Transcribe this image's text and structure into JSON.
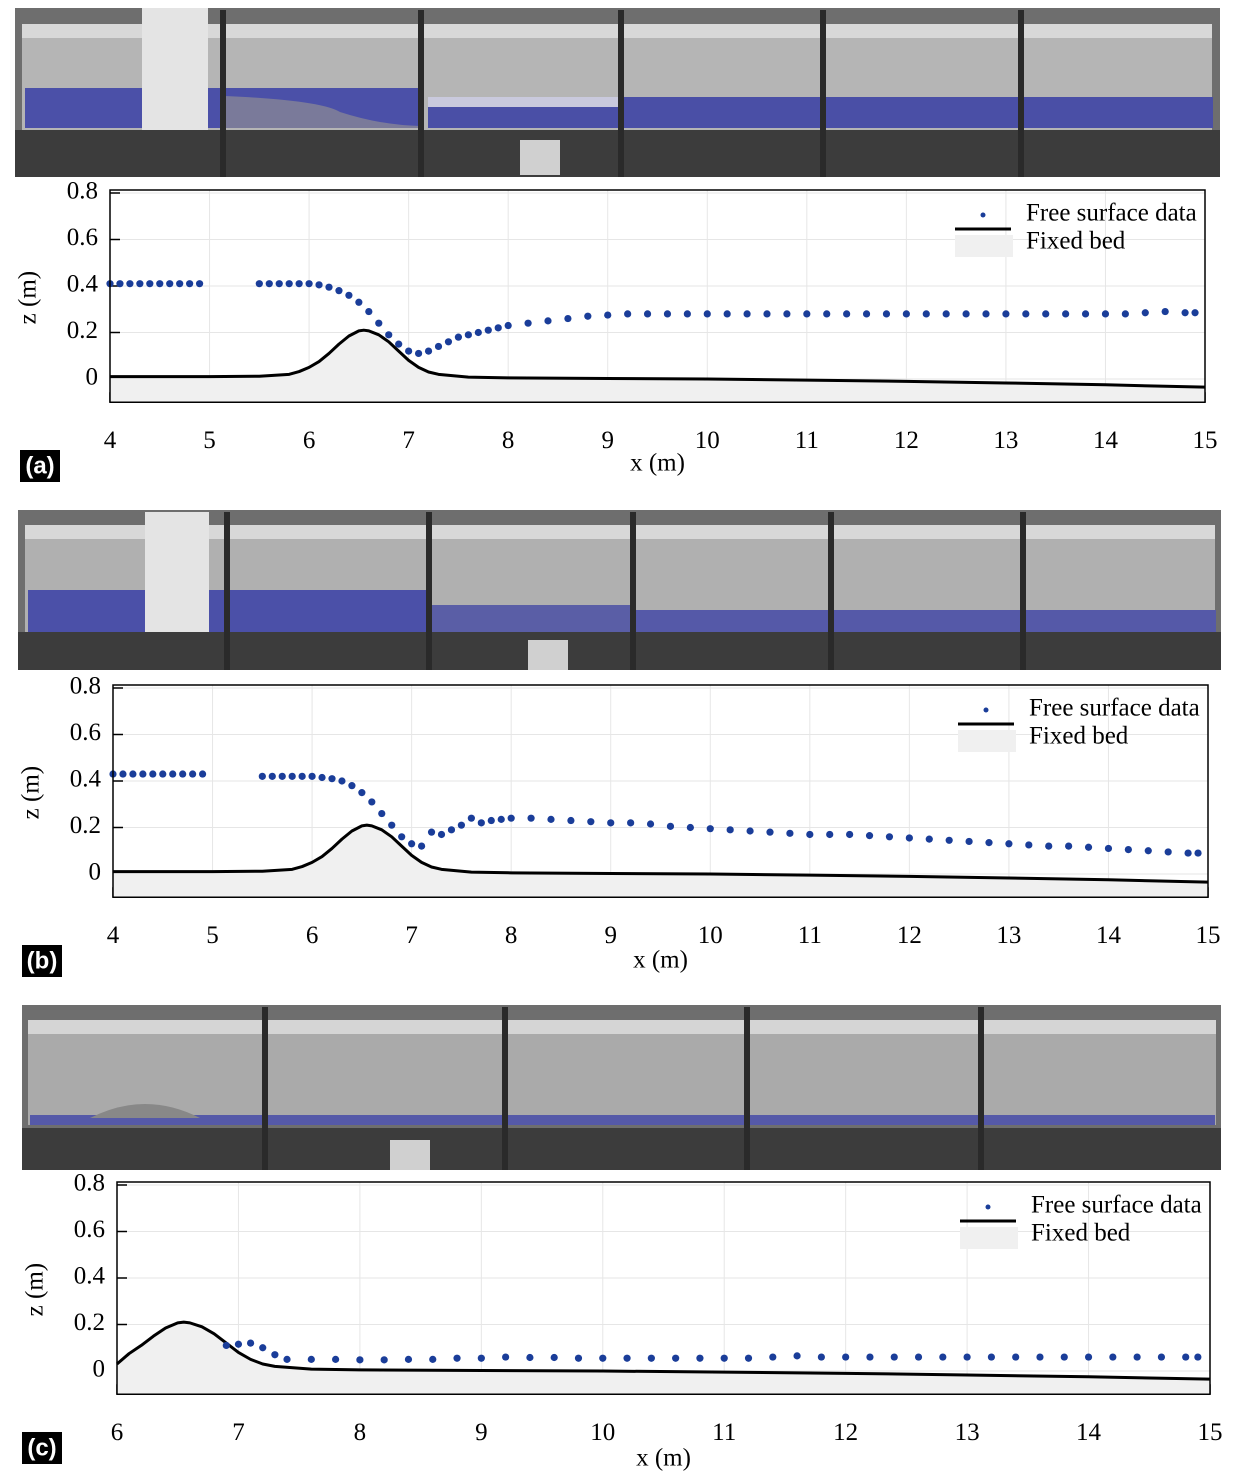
{
  "chart_data": [
    {
      "type": "scatter",
      "panel_label": "(a)",
      "xlabel": "x (m)",
      "ylabel": "z (m)",
      "xlim": [
        4,
        15
      ],
      "xticks": [
        4,
        5,
        6,
        7,
        8,
        9,
        10,
        11,
        12,
        13,
        14,
        15
      ],
      "ylim": [
        -0.1,
        0.8
      ],
      "yticks": [
        0,
        0.2,
        0.4,
        0.6,
        0.8
      ],
      "grid": true,
      "legend": "upper right",
      "series": [
        {
          "name": "Free surface data",
          "type": "scatter",
          "color": "#1a3d99",
          "x": [
            4.0,
            4.1,
            4.2,
            4.3,
            4.4,
            4.5,
            4.6,
            4.7,
            4.8,
            4.9,
            5.5,
            5.6,
            5.7,
            5.8,
            5.9,
            6.0,
            6.1,
            6.2,
            6.3,
            6.4,
            6.5,
            6.6,
            6.7,
            6.8,
            6.9,
            7.0,
            7.1,
            7.2,
            7.3,
            7.4,
            7.5,
            7.6,
            7.7,
            7.8,
            7.9,
            8.0,
            8.2,
            8.4,
            8.6,
            8.8,
            9.0,
            9.2,
            9.4,
            9.6,
            9.8,
            10.0,
            10.2,
            10.4,
            10.6,
            10.8,
            11.0,
            11.2,
            11.4,
            11.6,
            11.8,
            12.0,
            12.2,
            12.4,
            12.6,
            12.8,
            13.0,
            13.2,
            13.4,
            13.6,
            13.8,
            14.0,
            14.2,
            14.4,
            14.6,
            14.8,
            14.9
          ],
          "values": [
            0.41,
            0.41,
            0.41,
            0.41,
            0.41,
            0.41,
            0.41,
            0.41,
            0.41,
            0.41,
            0.41,
            0.41,
            0.41,
            0.41,
            0.41,
            0.41,
            0.405,
            0.395,
            0.38,
            0.36,
            0.33,
            0.29,
            0.24,
            0.19,
            0.15,
            0.12,
            0.11,
            0.12,
            0.14,
            0.16,
            0.18,
            0.19,
            0.2,
            0.21,
            0.22,
            0.23,
            0.24,
            0.25,
            0.26,
            0.27,
            0.275,
            0.28,
            0.28,
            0.28,
            0.28,
            0.28,
            0.28,
            0.28,
            0.28,
            0.28,
            0.28,
            0.28,
            0.28,
            0.28,
            0.28,
            0.28,
            0.28,
            0.28,
            0.28,
            0.28,
            0.28,
            0.28,
            0.28,
            0.28,
            0.28,
            0.28,
            0.28,
            0.285,
            0.29,
            0.285,
            0.285
          ]
        },
        {
          "name": "Fixed bed",
          "type": "line",
          "color": "#000000",
          "fill": "#f0f0f0",
          "x": [
            4,
            5,
            5.5,
            5.8,
            5.9,
            6.0,
            6.1,
            6.2,
            6.3,
            6.4,
            6.5,
            6.55,
            6.6,
            6.7,
            6.8,
            6.9,
            7.0,
            7.1,
            7.2,
            7.3,
            7.6,
            8,
            9,
            10,
            11,
            12,
            13,
            14,
            15
          ],
          "values": [
            0.01,
            0.01,
            0.012,
            0.02,
            0.032,
            0.05,
            0.075,
            0.11,
            0.15,
            0.185,
            0.207,
            0.21,
            0.207,
            0.19,
            0.16,
            0.12,
            0.08,
            0.05,
            0.03,
            0.02,
            0.008,
            0.005,
            0.002,
            0,
            -0.005,
            -0.01,
            -0.017,
            -0.025,
            -0.035
          ]
        }
      ]
    },
    {
      "type": "scatter",
      "panel_label": "(b)",
      "xlabel": "x (m)",
      "ylabel": "z (m)",
      "xlim": [
        4,
        15
      ],
      "xticks": [
        4,
        5,
        6,
        7,
        8,
        9,
        10,
        11,
        12,
        13,
        14,
        15
      ],
      "ylim": [
        -0.1,
        0.8
      ],
      "yticks": [
        0,
        0.2,
        0.4,
        0.6,
        0.8
      ],
      "grid": true,
      "legend": "upper right",
      "series": [
        {
          "name": "Free surface data",
          "type": "scatter",
          "color": "#1a3d99",
          "x": [
            4.0,
            4.1,
            4.2,
            4.3,
            4.4,
            4.5,
            4.6,
            4.7,
            4.8,
            4.9,
            5.5,
            5.6,
            5.7,
            5.8,
            5.9,
            6.0,
            6.1,
            6.2,
            6.3,
            6.4,
            6.5,
            6.6,
            6.7,
            6.8,
            6.9,
            7.0,
            7.1,
            7.2,
            7.3,
            7.4,
            7.5,
            7.6,
            7.7,
            7.8,
            7.9,
            8.0,
            8.2,
            8.4,
            8.6,
            8.8,
            9.0,
            9.2,
            9.4,
            9.6,
            9.8,
            10.0,
            10.2,
            10.4,
            10.6,
            10.8,
            11.0,
            11.2,
            11.4,
            11.6,
            11.8,
            12.0,
            12.2,
            12.4,
            12.6,
            12.8,
            13.0,
            13.2,
            13.4,
            13.6,
            13.8,
            14.0,
            14.2,
            14.4,
            14.6,
            14.8,
            14.9
          ],
          "values": [
            0.43,
            0.43,
            0.43,
            0.43,
            0.43,
            0.43,
            0.43,
            0.43,
            0.43,
            0.43,
            0.42,
            0.42,
            0.42,
            0.42,
            0.42,
            0.42,
            0.415,
            0.41,
            0.4,
            0.38,
            0.35,
            0.31,
            0.26,
            0.21,
            0.16,
            0.13,
            0.12,
            0.18,
            0.17,
            0.19,
            0.21,
            0.24,
            0.22,
            0.23,
            0.235,
            0.24,
            0.24,
            0.235,
            0.23,
            0.225,
            0.22,
            0.22,
            0.215,
            0.205,
            0.2,
            0.195,
            0.19,
            0.185,
            0.18,
            0.175,
            0.17,
            0.17,
            0.17,
            0.165,
            0.16,
            0.155,
            0.15,
            0.145,
            0.14,
            0.135,
            0.13,
            0.125,
            0.12,
            0.12,
            0.115,
            0.11,
            0.105,
            0.1,
            0.095,
            0.09,
            0.09
          ]
        },
        {
          "name": "Fixed bed",
          "type": "line",
          "color": "#000000",
          "fill": "#f0f0f0",
          "x": [
            4,
            5,
            5.5,
            5.8,
            5.9,
            6.0,
            6.1,
            6.2,
            6.3,
            6.4,
            6.5,
            6.55,
            6.6,
            6.7,
            6.8,
            6.9,
            7.0,
            7.1,
            7.2,
            7.3,
            7.6,
            8,
            9,
            10,
            11,
            12,
            13,
            14,
            15
          ],
          "values": [
            0.01,
            0.01,
            0.012,
            0.02,
            0.032,
            0.05,
            0.075,
            0.11,
            0.15,
            0.185,
            0.207,
            0.21,
            0.207,
            0.19,
            0.16,
            0.12,
            0.08,
            0.05,
            0.03,
            0.02,
            0.008,
            0.005,
            0.002,
            0,
            -0.005,
            -0.01,
            -0.017,
            -0.025,
            -0.035
          ]
        }
      ]
    },
    {
      "type": "scatter",
      "panel_label": "(c)",
      "xlabel": "x (m)",
      "ylabel": "z (m)",
      "xlim": [
        6,
        15
      ],
      "xticks": [
        6,
        7,
        8,
        9,
        10,
        11,
        12,
        13,
        14,
        15
      ],
      "ylim": [
        -0.1,
        0.8
      ],
      "yticks": [
        0,
        0.2,
        0.4,
        0.6,
        0.8
      ],
      "grid": true,
      "legend": "upper right",
      "series": [
        {
          "name": "Free surface data",
          "type": "scatter",
          "color": "#1a3d99",
          "x": [
            6.9,
            7.0,
            7.1,
            7.2,
            7.3,
            7.4,
            7.6,
            7.8,
            8.0,
            8.2,
            8.4,
            8.6,
            8.8,
            9.0,
            9.2,
            9.4,
            9.6,
            9.8,
            10.0,
            10.2,
            10.4,
            10.6,
            10.8,
            11.0,
            11.2,
            11.4,
            11.6,
            11.8,
            12.0,
            12.2,
            12.4,
            12.6,
            12.8,
            13.0,
            13.2,
            13.4,
            13.6,
            13.8,
            14.0,
            14.2,
            14.4,
            14.6,
            14.8,
            14.9
          ],
          "values": [
            0.11,
            0.115,
            0.12,
            0.1,
            0.07,
            0.05,
            0.05,
            0.05,
            0.048,
            0.048,
            0.05,
            0.05,
            0.055,
            0.055,
            0.06,
            0.058,
            0.058,
            0.055,
            0.055,
            0.055,
            0.055,
            0.055,
            0.055,
            0.055,
            0.055,
            0.06,
            0.065,
            0.06,
            0.06,
            0.06,
            0.06,
            0.06,
            0.06,
            0.06,
            0.06,
            0.06,
            0.06,
            0.06,
            0.06,
            0.06,
            0.06,
            0.06,
            0.06,
            0.06
          ]
        },
        {
          "name": "Fixed bed",
          "type": "line",
          "color": "#000000",
          "fill": "#f0f0f0",
          "x": [
            6.0,
            6.1,
            6.2,
            6.3,
            6.4,
            6.5,
            6.55,
            6.6,
            6.7,
            6.8,
            6.9,
            7.0,
            7.1,
            7.2,
            7.3,
            7.6,
            8,
            9,
            10,
            11,
            12,
            13,
            14,
            15
          ],
          "values": [
            0.03,
            0.075,
            0.11,
            0.15,
            0.185,
            0.207,
            0.21,
            0.207,
            0.19,
            0.16,
            0.12,
            0.08,
            0.05,
            0.03,
            0.02,
            0.008,
            0.005,
            0.002,
            0,
            -0.005,
            -0.01,
            -0.017,
            -0.025,
            -0.035
          ]
        }
      ]
    }
  ]
}
